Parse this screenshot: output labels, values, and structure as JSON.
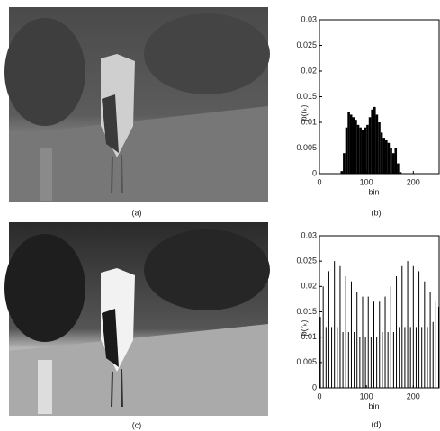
{
  "figure": {
    "captions": [
      "(a)",
      "(c)"
    ]
  },
  "chart_data": [
    {
      "type": "histogram",
      "caption": "(b)",
      "ylabel": "p(rₖ)",
      "xlabel": "bin",
      "color": "#000000",
      "bins": [
        45,
        50,
        55,
        60,
        65,
        70,
        75,
        80,
        85,
        90,
        95,
        100,
        105,
        110,
        115,
        120,
        125,
        130,
        135,
        140,
        145,
        150,
        155,
        160,
        165,
        170,
        175
      ],
      "values": [
        0.0005,
        0.004,
        0.009,
        0.012,
        0.0115,
        0.011,
        0.0105,
        0.0095,
        0.009,
        0.0085,
        0.009,
        0.0095,
        0.011,
        0.0125,
        0.013,
        0.0115,
        0.01,
        0.008,
        0.007,
        0.0065,
        0.006,
        0.005,
        0.004,
        0.005,
        0.002,
        0.0003
      ],
      "xlim": [
        0,
        255
      ],
      "xticks": [
        0,
        100,
        200
      ],
      "ylim": [
        0,
        0.03
      ],
      "yticks": [
        0,
        0.005,
        0.01,
        0.015,
        0.02,
        0.025,
        0.03
      ]
    },
    {
      "type": "stem",
      "caption": "(d)",
      "ylabel": "p(rₖ)",
      "xlabel": "bin",
      "color": "#000000",
      "x": [
        2,
        8,
        14,
        20,
        26,
        32,
        38,
        44,
        50,
        56,
        62,
        68,
        74,
        80,
        86,
        92,
        98,
        104,
        110,
        116,
        122,
        128,
        134,
        140,
        146,
        152,
        158,
        164,
        170,
        176,
        182,
        188,
        194,
        200,
        206,
        212,
        218,
        224,
        230,
        236,
        242,
        248,
        254
      ],
      "values": [
        0.014,
        0.02,
        0.012,
        0.023,
        0.012,
        0.025,
        0.012,
        0.024,
        0.011,
        0.022,
        0.011,
        0.021,
        0.011,
        0.019,
        0.01,
        0.018,
        0.01,
        0.018,
        0.01,
        0.017,
        0.01,
        0.017,
        0.011,
        0.018,
        0.011,
        0.02,
        0.011,
        0.022,
        0.012,
        0.024,
        0.012,
        0.025,
        0.012,
        0.024,
        0.012,
        0.023,
        0.012,
        0.021,
        0.012,
        0.019,
        0.013,
        0.017,
        0.016
      ],
      "xlim": [
        0,
        255
      ],
      "xticks": [
        0,
        100,
        200
      ],
      "ylim": [
        0,
        0.03
      ],
      "yticks": [
        0,
        0.005,
        0.01,
        0.015,
        0.02,
        0.025,
        0.03
      ]
    }
  ]
}
